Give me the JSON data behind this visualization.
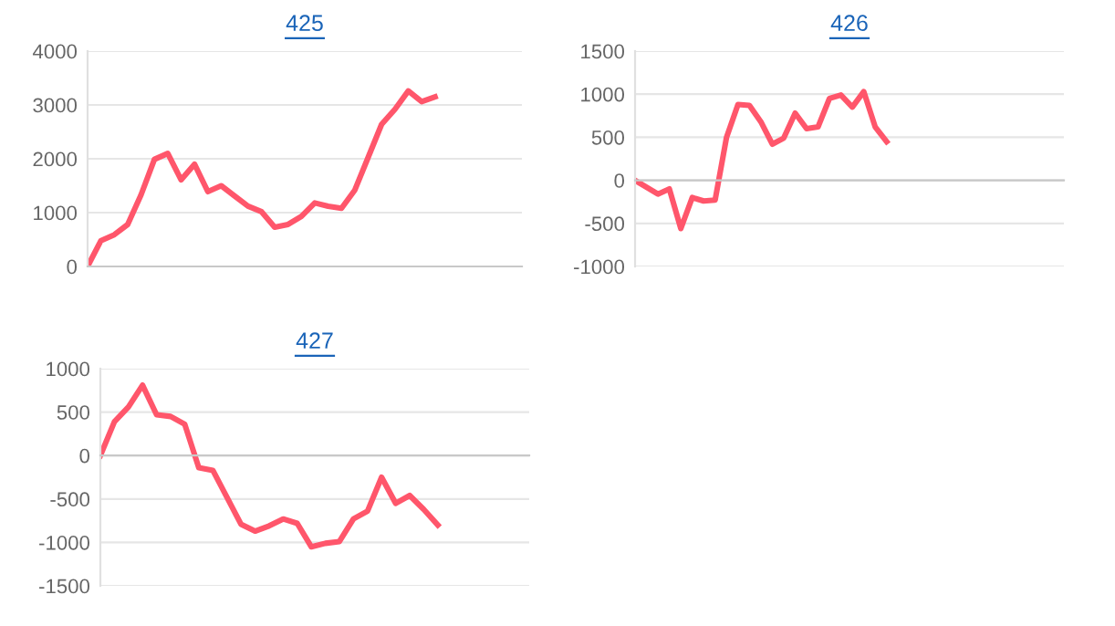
{
  "chart_data": [
    {
      "type": "line",
      "title": "425",
      "categories": [
        null,
        null,
        null,
        null,
        null,
        null,
        null,
        null,
        null,
        null,
        null,
        null,
        null,
        null,
        null,
        null,
        null,
        null,
        null,
        null,
        null,
        null,
        null,
        null,
        null,
        null,
        null,
        null,
        null,
        null,
        null,
        null,
        null
      ],
      "series": [
        {
          "color": "#ff566b",
          "values": [
            0,
            480,
            590,
            780,
            1330,
            1990,
            2100,
            1610,
            1900,
            1390,
            1500,
            1310,
            1120,
            1020,
            730,
            780,
            930,
            1180,
            1120,
            1080,
            1420,
            2030,
            2640,
            2920,
            3260,
            3060,
            3150,
            null,
            null,
            null,
            null,
            null,
            null
          ]
        }
      ],
      "ylim": [
        0,
        4000
      ],
      "yticks": [
        0,
        1000,
        2000,
        3000,
        4000
      ],
      "grid": "y",
      "tick_labels": "y",
      "marker": "none",
      "line_style": "solid"
    },
    {
      "type": "line",
      "title": "426",
      "categories": [
        null,
        null,
        null,
        null,
        null,
        null,
        null,
        null,
        null,
        null,
        null,
        null,
        null,
        null,
        null,
        null,
        null,
        null,
        null,
        null,
        null,
        null,
        null,
        null,
        null,
        null,
        null,
        null,
        null,
        null,
        null,
        null,
        null,
        null,
        null,
        null,
        null,
        null
      ],
      "series": [
        {
          "color": "#ff566b",
          "values": [
            0,
            -80,
            -160,
            -100,
            -560,
            -200,
            -240,
            -230,
            500,
            880,
            870,
            680,
            420,
            490,
            780,
            600,
            620,
            950,
            990,
            850,
            1030,
            620,
            450,
            null,
            null,
            null,
            null,
            null,
            null,
            null,
            null,
            null,
            null,
            null,
            null,
            null,
            null,
            null
          ]
        }
      ],
      "ylim": [
        -1000,
        1500
      ],
      "yticks": [
        -1000,
        -500,
        0,
        500,
        1000,
        1500
      ],
      "grid": "y",
      "tick_labels": "y",
      "marker": "none",
      "line_style": "solid"
    },
    {
      "type": "line",
      "title": "427",
      "categories": [
        null,
        null,
        null,
        null,
        null,
        null,
        null,
        null,
        null,
        null,
        null,
        null,
        null,
        null,
        null,
        null,
        null,
        null,
        null,
        null,
        null,
        null,
        null,
        null,
        null,
        null,
        null,
        null,
        null,
        null,
        null
      ],
      "series": [
        {
          "color": "#ff566b",
          "values": [
            0,
            390,
            560,
            810,
            470,
            450,
            360,
            -140,
            -170,
            -480,
            -790,
            -870,
            -810,
            -730,
            -780,
            -1050,
            -1010,
            -990,
            -730,
            -640,
            -250,
            -550,
            -460,
            -620,
            -800,
            null,
            null,
            null,
            null,
            null,
            null
          ]
        }
      ],
      "ylim": [
        -1500,
        1000
      ],
      "yticks": [
        -1500,
        -1000,
        -500,
        0,
        500,
        1000
      ],
      "grid": "y",
      "tick_labels": "y",
      "marker": "none",
      "line_style": "solid"
    }
  ]
}
